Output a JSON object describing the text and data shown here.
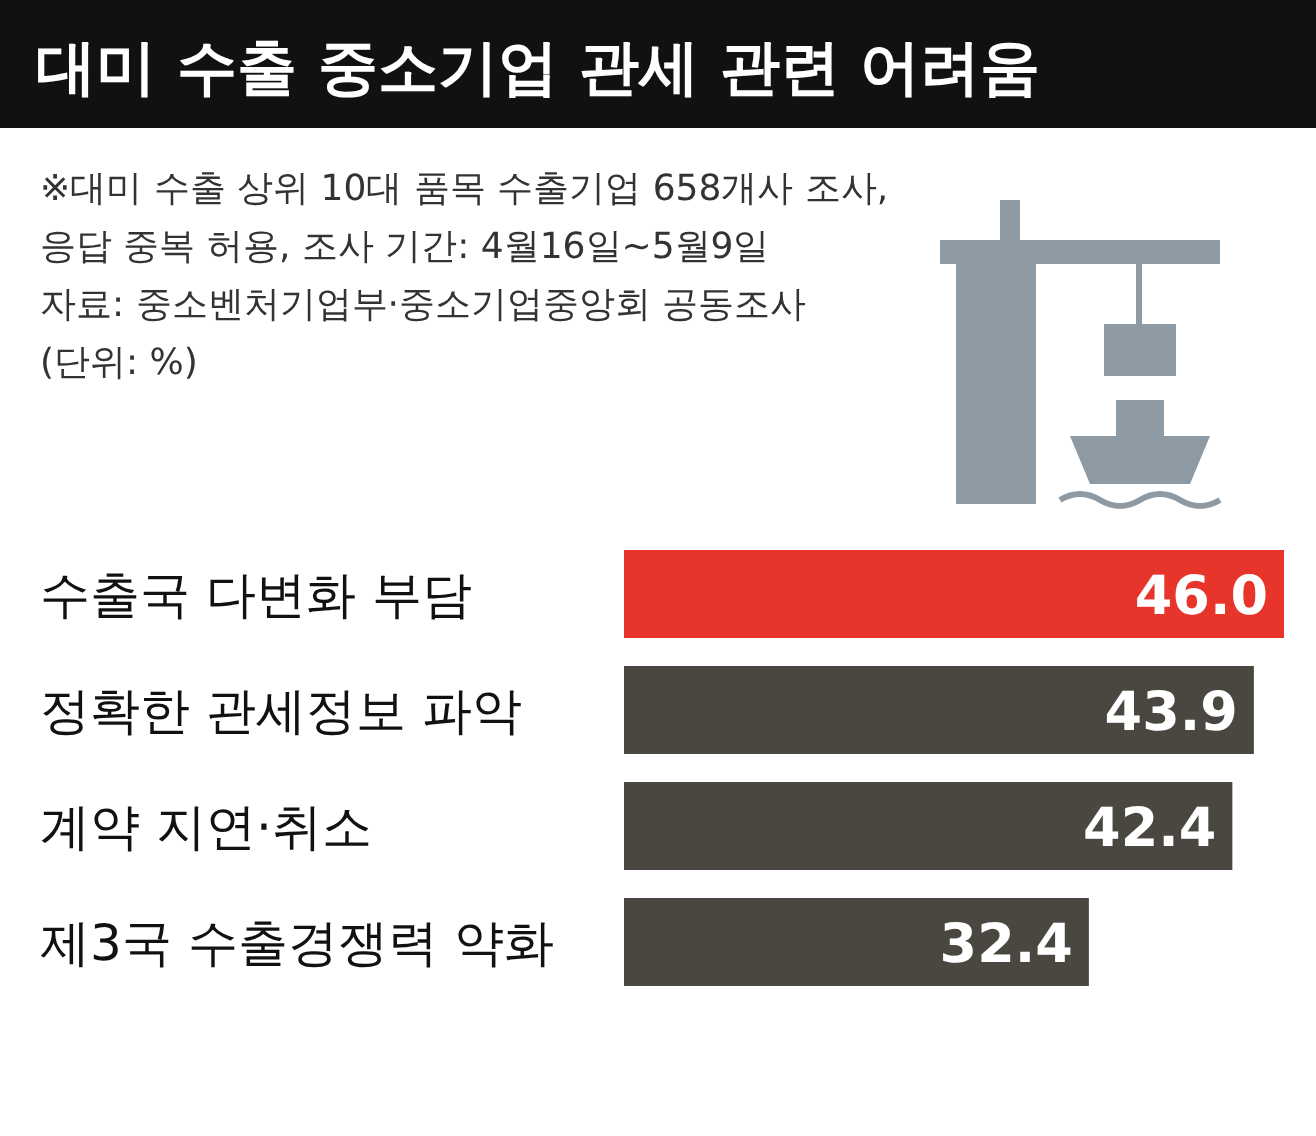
{
  "chart_data": {
    "type": "bar",
    "orientation": "horizontal",
    "title": "대미 수출 중소기업 관세 관련 어려움",
    "annotations": [
      "※대미 수출 상위 10대 품목 수출기업 658개사 조사,",
      "응답 중복 허용, 조사 기간: 4월16일~5월9일",
      "자료: 중소벤처기업부·중소기업중앙회 공동조사",
      "(단위: %)"
    ],
    "categories": [
      "수출국 다변화 부담",
      "정확한 관세정보 파악",
      "계약 지연·취소",
      "제3국 수출경쟁력 약화"
    ],
    "values": [
      46.0,
      43.9,
      42.4,
      32.4
    ],
    "colors": [
      "#e8352b",
      "#4a4741",
      "#4a4741",
      "#4a4741"
    ],
    "value_labels": [
      "46.0",
      "43.9",
      "42.4",
      "32.4"
    ]
  }
}
